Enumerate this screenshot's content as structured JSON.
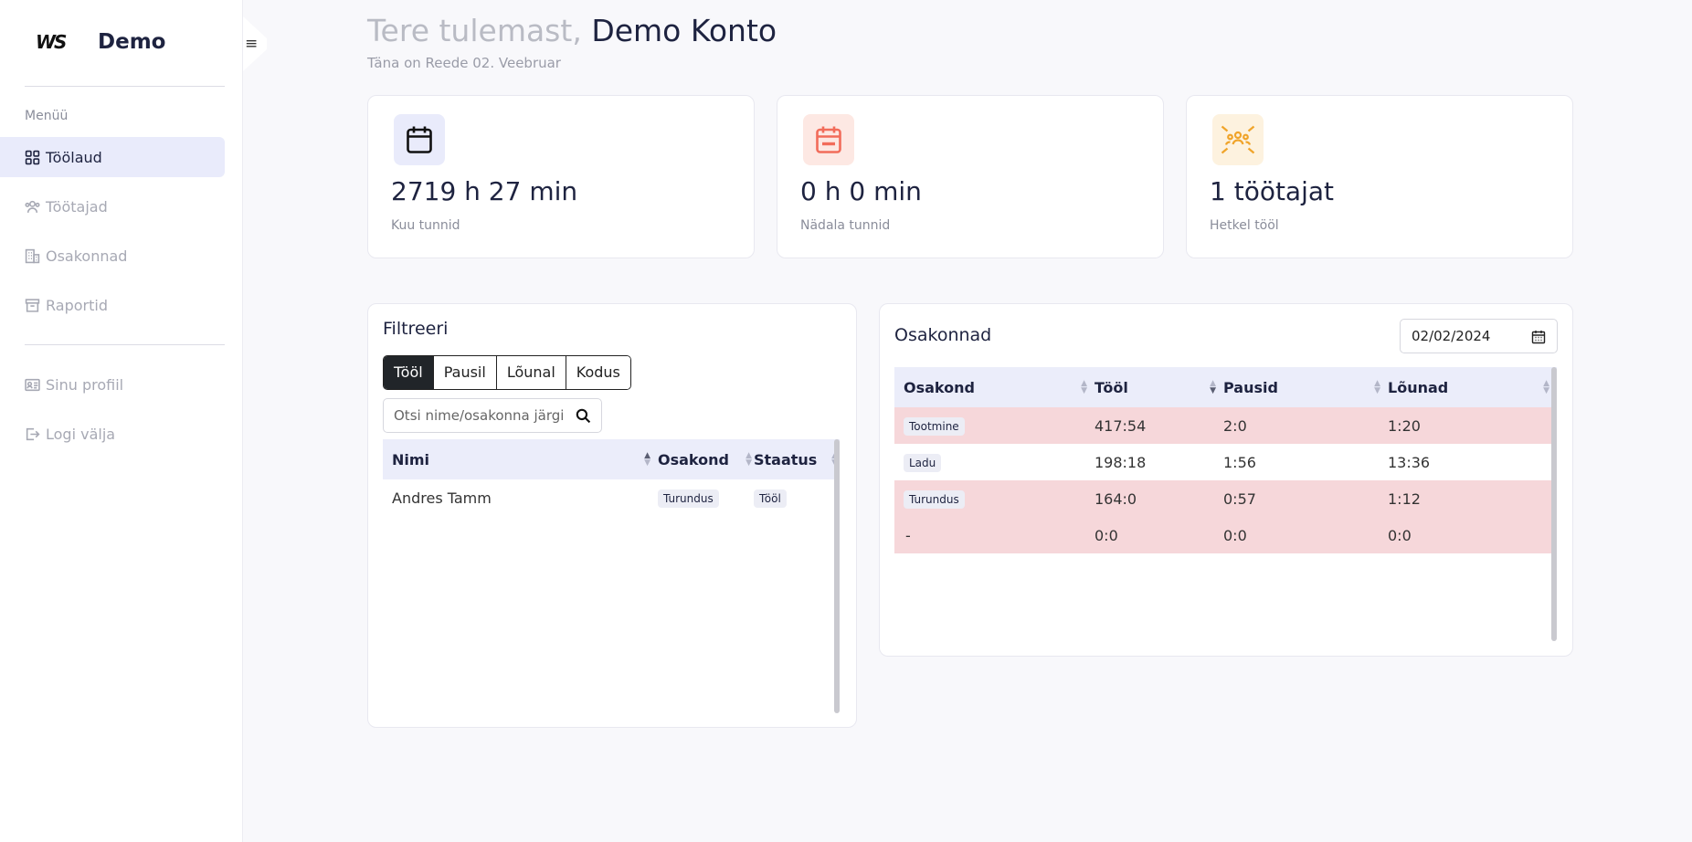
{
  "sidebar": {
    "logo": "WS",
    "company": "Demo",
    "menu_title": "Menüü",
    "items": [
      {
        "label": "Töölaud",
        "icon": "grid-icon",
        "active": true
      },
      {
        "label": "Töötajad",
        "icon": "users-icon"
      },
      {
        "label": "Osakonnad",
        "icon": "building-icon"
      },
      {
        "label": "Raportid",
        "icon": "archive-icon"
      },
      {
        "label": "Sinu profiil",
        "icon": "id-card-icon"
      },
      {
        "label": "Logi välja",
        "icon": "logout-icon"
      }
    ]
  },
  "header": {
    "welcome": "Tere tulemast,",
    "user_name": "Demo Konto",
    "today": "Täna on Reede 02. Veebruar"
  },
  "stats": [
    {
      "value": "2719 h 27 min",
      "label": "Kuu tunnid",
      "icon": "calendar-icon",
      "icon_bg": "#e9ebfb",
      "icon_color": "#111111"
    },
    {
      "value": "0 h 0 min",
      "label": "Nädala tunnid",
      "icon": "calendar-minus-icon",
      "icon_bg": "#fde8e3",
      "icon_color": "#f26c5a"
    },
    {
      "value": "1 töötajat",
      "label": "Hetkel tööl",
      "icon": "team-icon",
      "icon_bg": "#fdf2df",
      "icon_color": "#f0a42a"
    }
  ],
  "filter": {
    "title": "Filtreeri",
    "segments": [
      "Tööl",
      "Pausil",
      "Lõunal",
      "Kodus"
    ],
    "search_placeholder": "Otsi nime/osakonna järgi",
    "columns": [
      "Nimi",
      "Osakond",
      "Staatus"
    ],
    "rows": [
      {
        "name": "Andres Tamm",
        "department": "Turundus",
        "status": "Tööl"
      }
    ]
  },
  "departments": {
    "title": "Osakonnad",
    "date": "02/02/2024",
    "columns": [
      "Osakond",
      "Tööl",
      "Pausid",
      "Lõunad"
    ],
    "rows": [
      {
        "name": "Tootmine",
        "work": "417:54",
        "breaks": "2:0",
        "lunches": "1:20",
        "highlight": true,
        "badge": true
      },
      {
        "name": "Ladu",
        "work": "198:18",
        "breaks": "1:56",
        "lunches": "13:36",
        "highlight": false,
        "badge": true
      },
      {
        "name": "Turundus",
        "work": "164:0",
        "breaks": "0:57",
        "lunches": "1:12",
        "highlight": true,
        "badge": true
      },
      {
        "name": "-",
        "work": "0:0",
        "breaks": "0:0",
        "lunches": "0:0",
        "highlight": true,
        "badge": false
      }
    ]
  },
  "colors": {
    "accent": "#1e2340",
    "active_nav": "#e9ebfb",
    "row_highlight": "#f6d7da"
  }
}
